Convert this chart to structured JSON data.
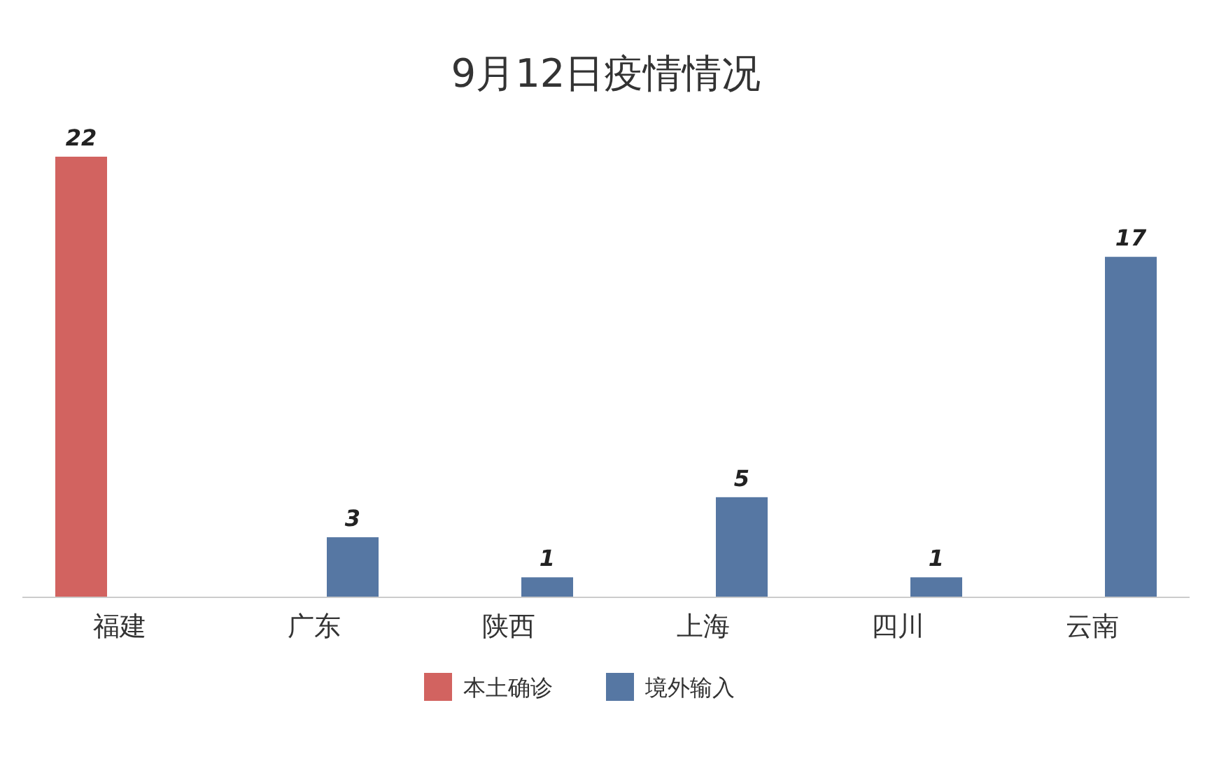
{
  "chart_data": {
    "type": "bar",
    "title": "9月12日疫情情况",
    "categories": [
      "福建",
      "广东",
      "陕西",
      "上海",
      "四川",
      "云南"
    ],
    "series": [
      {
        "name": "本土确诊",
        "color": "#d26360",
        "values": [
          22,
          null,
          null,
          null,
          null,
          null
        ]
      },
      {
        "name": "境外输入",
        "color": "#5677a3",
        "values": [
          null,
          3,
          1,
          5,
          1,
          17
        ]
      }
    ],
    "data_labels": true,
    "legend": "bottom"
  }
}
